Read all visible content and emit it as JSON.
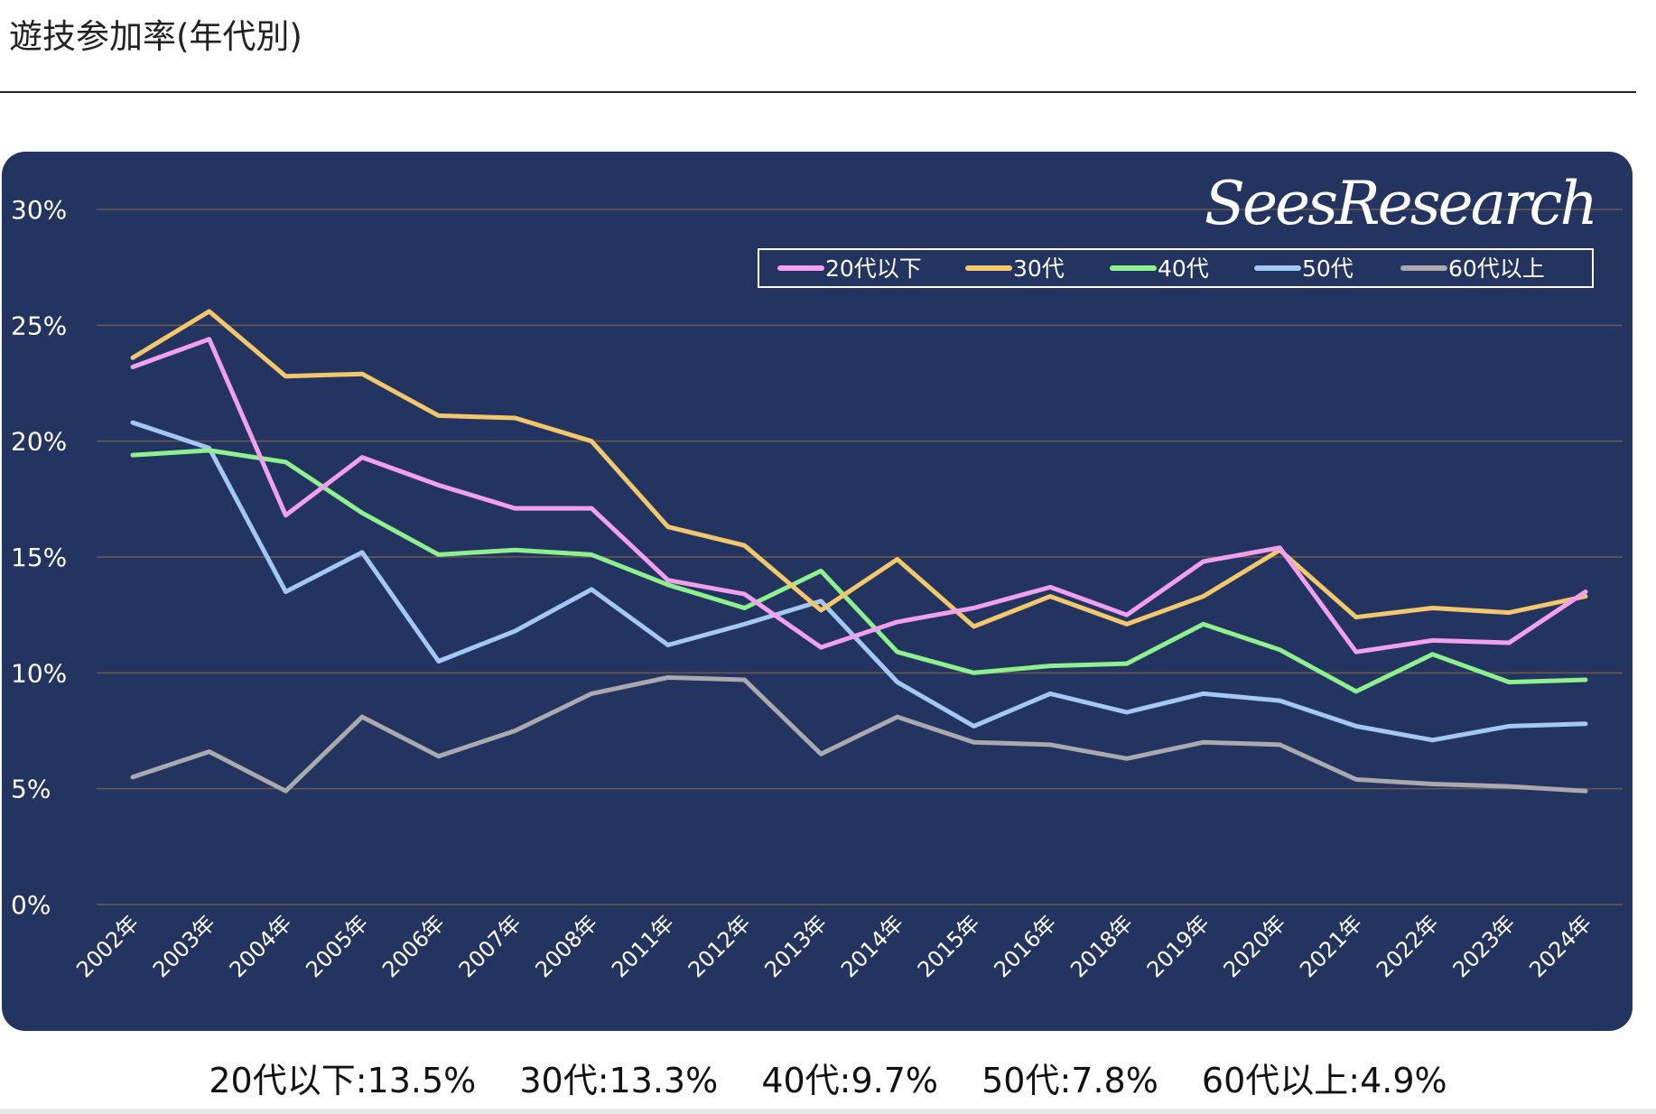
{
  "page": {
    "title": "遊技参加率(年代別)"
  },
  "chart_data": {
    "type": "line",
    "title": "",
    "xlabel": "",
    "ylabel": "",
    "watermark": "SeesResearch",
    "categories": [
      "2002年",
      "2003年",
      "2004年",
      "2005年",
      "2006年",
      "2007年",
      "2008年",
      "2011年",
      "2012年",
      "2013年",
      "2014年",
      "2015年",
      "2016年",
      "2018年",
      "2019年",
      "2020年",
      "2021年",
      "2022年",
      "2023年",
      "2024年"
    ],
    "y_ticks": [
      "0%",
      "5%",
      "10%",
      "15%",
      "20%",
      "25%",
      "30%"
    ],
    "ylim": [
      0,
      30
    ],
    "grid": true,
    "legend_position": "top-right",
    "series": [
      {
        "name": "20代以下",
        "color": "#f1a0f0",
        "values": [
          23.2,
          24.4,
          16.8,
          19.3,
          18.1,
          17.1,
          17.1,
          14.0,
          13.4,
          11.1,
          12.2,
          12.8,
          13.7,
          12.5,
          14.8,
          15.4,
          10.9,
          11.4,
          11.3,
          13.5
        ]
      },
      {
        "name": "30代",
        "color": "#f3c86c",
        "values": [
          23.6,
          25.6,
          22.8,
          22.9,
          21.1,
          21.0,
          20.0,
          16.3,
          15.5,
          12.7,
          14.9,
          12.0,
          13.3,
          12.1,
          13.3,
          15.3,
          12.4,
          12.8,
          12.6,
          13.3
        ]
      },
      {
        "name": "40代",
        "color": "#8ff08e",
        "values": [
          19.4,
          19.6,
          19.1,
          16.9,
          15.1,
          15.3,
          15.1,
          13.8,
          12.8,
          14.4,
          10.9,
          10.0,
          10.3,
          10.4,
          12.1,
          11.0,
          9.2,
          10.8,
          9.6,
          9.7
        ]
      },
      {
        "name": "50代",
        "color": "#a4c8f5",
        "values": [
          20.8,
          19.7,
          13.5,
          15.2,
          10.5,
          11.8,
          13.6,
          11.2,
          12.1,
          13.1,
          9.6,
          7.7,
          9.1,
          8.3,
          9.1,
          8.8,
          7.7,
          7.1,
          7.7,
          7.8
        ]
      },
      {
        "name": "60代以上",
        "color": "#a9a9ae",
        "values": [
          5.5,
          6.6,
          4.9,
          8.1,
          6.4,
          7.5,
          9.1,
          9.8,
          9.7,
          6.5,
          8.1,
          7.0,
          6.9,
          6.3,
          7.0,
          6.9,
          5.4,
          5.2,
          5.1,
          4.9
        ]
      }
    ]
  },
  "summary": [
    "20代以下:13.5%",
    "30代:13.3%",
    "40代:9.7%",
    "50代:7.8%",
    "60代以上:4.9%"
  ]
}
